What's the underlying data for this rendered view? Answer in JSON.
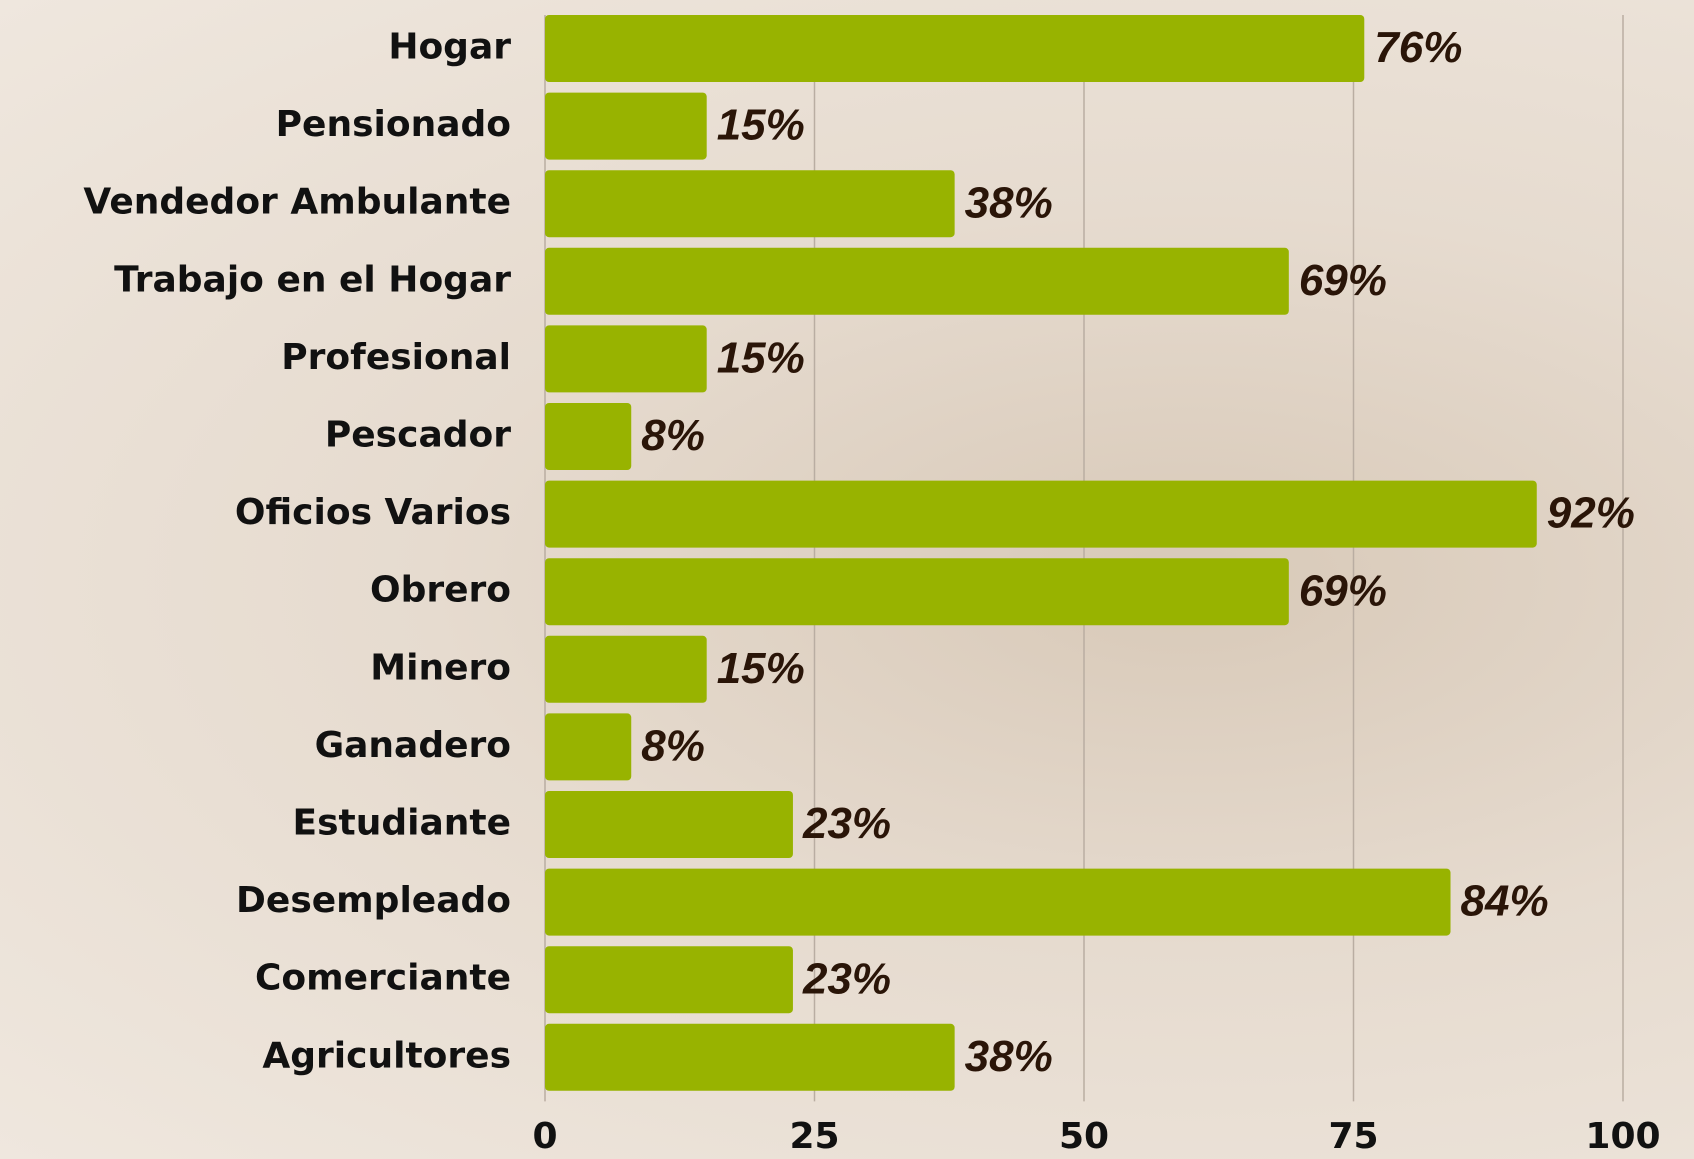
{
  "chart_data": {
    "type": "bar",
    "orientation": "horizontal",
    "categories": [
      "Hogar",
      "Pensionado",
      "Vendedor Ambulante",
      "Trabajo en el Hogar",
      "Profesional",
      "Pescador",
      "Oficios Varios",
      "Obrero",
      "Minero",
      "Ganadero",
      "Estudiante",
      "Desempleado",
      "Comerciante",
      "Agricultores"
    ],
    "values": [
      76,
      15,
      38,
      69,
      15,
      8,
      92,
      69,
      15,
      8,
      23,
      84,
      23,
      38
    ],
    "value_labels": [
      "76%",
      "15%",
      "38%",
      "69%",
      "15%",
      "8%",
      "92%",
      "69%",
      "15%",
      "8%",
      "23%",
      "84%",
      "23%",
      "38%"
    ],
    "color": "#98b300",
    "xlim": [
      0,
      100
    ],
    "xticks": [
      0,
      25,
      50,
      75,
      100
    ],
    "grid": true
  }
}
